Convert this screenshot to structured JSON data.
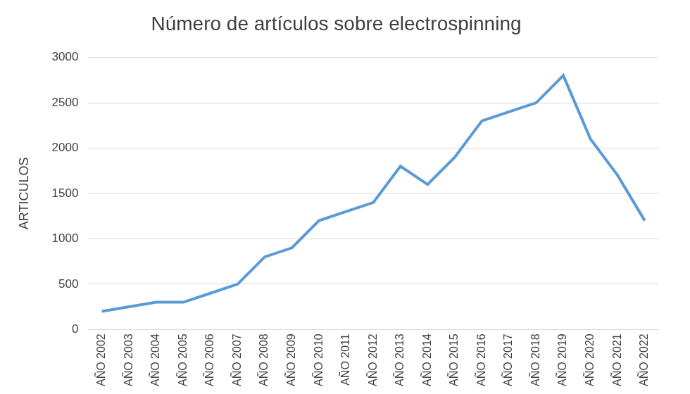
{
  "chart_data": {
    "type": "line",
    "title": "Número de artículos sobre electrospinning",
    "y_label": "ARTICULOS",
    "categories": [
      "AÑO 2002",
      "AÑO 2003",
      "AÑO 2004",
      "AÑO 2005",
      "AÑO 2006",
      "AÑO 2007",
      "AÑO 2008",
      "AÑO 2009",
      "AÑO 2010",
      "AÑO 2011",
      "AÑO 2012",
      "AÑO 2013",
      "AÑO 2014",
      "AÑO 2015",
      "AÑO 2016",
      "AÑO 2017",
      "AÑO 2018",
      "AÑO 2019",
      "AÑO 2020",
      "AÑO 2021",
      "AÑO 2022"
    ],
    "values": [
      200,
      250,
      300,
      300,
      400,
      500,
      800,
      900,
      1200,
      1300,
      1400,
      1800,
      1600,
      1900,
      2300,
      2400,
      2500,
      2800,
      2100,
      1700,
      1200
    ],
    "color": "#5b9bd5",
    "ylim": [
      0,
      3000
    ],
    "yticks": [
      0,
      500,
      1000,
      1500,
      2000,
      2500,
      3000
    ],
    "grid": true
  }
}
